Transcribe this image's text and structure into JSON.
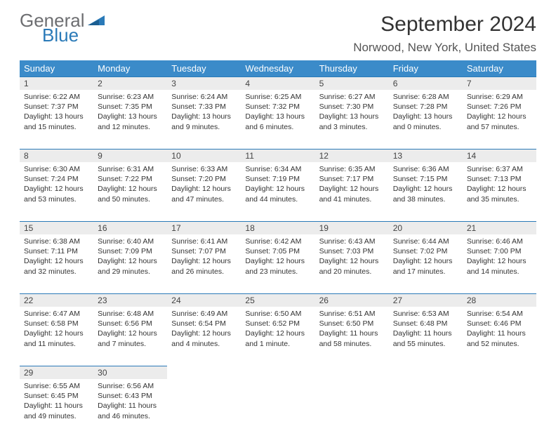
{
  "brand": {
    "line1": "General",
    "line2": "Blue"
  },
  "title": "September 2024",
  "location": "Norwood, New York, United States",
  "colors": {
    "header_bg": "#3b8bc9",
    "header_text": "#ffffff",
    "daynum_bg": "#ececec",
    "rule": "#2a7ab8",
    "body_text": "#333333",
    "logo_gray": "#6d6e71",
    "logo_blue": "#2a7ab8",
    "page_bg": "#ffffff"
  },
  "typography": {
    "title_fontsize": 30,
    "location_fontsize": 17,
    "dayheader_fontsize": 13,
    "daynum_fontsize": 12,
    "body_fontsize": 10.5,
    "logo_fontsize": 26
  },
  "day_headers": [
    "Sunday",
    "Monday",
    "Tuesday",
    "Wednesday",
    "Thursday",
    "Friday",
    "Saturday"
  ],
  "weeks": [
    [
      {
        "n": "1",
        "sunrise": "Sunrise: 6:22 AM",
        "sunset": "Sunset: 7:37 PM",
        "day1": "Daylight: 13 hours",
        "day2": "and 15 minutes."
      },
      {
        "n": "2",
        "sunrise": "Sunrise: 6:23 AM",
        "sunset": "Sunset: 7:35 PM",
        "day1": "Daylight: 13 hours",
        "day2": "and 12 minutes."
      },
      {
        "n": "3",
        "sunrise": "Sunrise: 6:24 AM",
        "sunset": "Sunset: 7:33 PM",
        "day1": "Daylight: 13 hours",
        "day2": "and 9 minutes."
      },
      {
        "n": "4",
        "sunrise": "Sunrise: 6:25 AM",
        "sunset": "Sunset: 7:32 PM",
        "day1": "Daylight: 13 hours",
        "day2": "and 6 minutes."
      },
      {
        "n": "5",
        "sunrise": "Sunrise: 6:27 AM",
        "sunset": "Sunset: 7:30 PM",
        "day1": "Daylight: 13 hours",
        "day2": "and 3 minutes."
      },
      {
        "n": "6",
        "sunrise": "Sunrise: 6:28 AM",
        "sunset": "Sunset: 7:28 PM",
        "day1": "Daylight: 13 hours",
        "day2": "and 0 minutes."
      },
      {
        "n": "7",
        "sunrise": "Sunrise: 6:29 AM",
        "sunset": "Sunset: 7:26 PM",
        "day1": "Daylight: 12 hours",
        "day2": "and 57 minutes."
      }
    ],
    [
      {
        "n": "8",
        "sunrise": "Sunrise: 6:30 AM",
        "sunset": "Sunset: 7:24 PM",
        "day1": "Daylight: 12 hours",
        "day2": "and 53 minutes."
      },
      {
        "n": "9",
        "sunrise": "Sunrise: 6:31 AM",
        "sunset": "Sunset: 7:22 PM",
        "day1": "Daylight: 12 hours",
        "day2": "and 50 minutes."
      },
      {
        "n": "10",
        "sunrise": "Sunrise: 6:33 AM",
        "sunset": "Sunset: 7:20 PM",
        "day1": "Daylight: 12 hours",
        "day2": "and 47 minutes."
      },
      {
        "n": "11",
        "sunrise": "Sunrise: 6:34 AM",
        "sunset": "Sunset: 7:19 PM",
        "day1": "Daylight: 12 hours",
        "day2": "and 44 minutes."
      },
      {
        "n": "12",
        "sunrise": "Sunrise: 6:35 AM",
        "sunset": "Sunset: 7:17 PM",
        "day1": "Daylight: 12 hours",
        "day2": "and 41 minutes."
      },
      {
        "n": "13",
        "sunrise": "Sunrise: 6:36 AM",
        "sunset": "Sunset: 7:15 PM",
        "day1": "Daylight: 12 hours",
        "day2": "and 38 minutes."
      },
      {
        "n": "14",
        "sunrise": "Sunrise: 6:37 AM",
        "sunset": "Sunset: 7:13 PM",
        "day1": "Daylight: 12 hours",
        "day2": "and 35 minutes."
      }
    ],
    [
      {
        "n": "15",
        "sunrise": "Sunrise: 6:38 AM",
        "sunset": "Sunset: 7:11 PM",
        "day1": "Daylight: 12 hours",
        "day2": "and 32 minutes."
      },
      {
        "n": "16",
        "sunrise": "Sunrise: 6:40 AM",
        "sunset": "Sunset: 7:09 PM",
        "day1": "Daylight: 12 hours",
        "day2": "and 29 minutes."
      },
      {
        "n": "17",
        "sunrise": "Sunrise: 6:41 AM",
        "sunset": "Sunset: 7:07 PM",
        "day1": "Daylight: 12 hours",
        "day2": "and 26 minutes."
      },
      {
        "n": "18",
        "sunrise": "Sunrise: 6:42 AM",
        "sunset": "Sunset: 7:05 PM",
        "day1": "Daylight: 12 hours",
        "day2": "and 23 minutes."
      },
      {
        "n": "19",
        "sunrise": "Sunrise: 6:43 AM",
        "sunset": "Sunset: 7:03 PM",
        "day1": "Daylight: 12 hours",
        "day2": "and 20 minutes."
      },
      {
        "n": "20",
        "sunrise": "Sunrise: 6:44 AM",
        "sunset": "Sunset: 7:02 PM",
        "day1": "Daylight: 12 hours",
        "day2": "and 17 minutes."
      },
      {
        "n": "21",
        "sunrise": "Sunrise: 6:46 AM",
        "sunset": "Sunset: 7:00 PM",
        "day1": "Daylight: 12 hours",
        "day2": "and 14 minutes."
      }
    ],
    [
      {
        "n": "22",
        "sunrise": "Sunrise: 6:47 AM",
        "sunset": "Sunset: 6:58 PM",
        "day1": "Daylight: 12 hours",
        "day2": "and 11 minutes."
      },
      {
        "n": "23",
        "sunrise": "Sunrise: 6:48 AM",
        "sunset": "Sunset: 6:56 PM",
        "day1": "Daylight: 12 hours",
        "day2": "and 7 minutes."
      },
      {
        "n": "24",
        "sunrise": "Sunrise: 6:49 AM",
        "sunset": "Sunset: 6:54 PM",
        "day1": "Daylight: 12 hours",
        "day2": "and 4 minutes."
      },
      {
        "n": "25",
        "sunrise": "Sunrise: 6:50 AM",
        "sunset": "Sunset: 6:52 PM",
        "day1": "Daylight: 12 hours",
        "day2": "and 1 minute."
      },
      {
        "n": "26",
        "sunrise": "Sunrise: 6:51 AM",
        "sunset": "Sunset: 6:50 PM",
        "day1": "Daylight: 11 hours",
        "day2": "and 58 minutes."
      },
      {
        "n": "27",
        "sunrise": "Sunrise: 6:53 AM",
        "sunset": "Sunset: 6:48 PM",
        "day1": "Daylight: 11 hours",
        "day2": "and 55 minutes."
      },
      {
        "n": "28",
        "sunrise": "Sunrise: 6:54 AM",
        "sunset": "Sunset: 6:46 PM",
        "day1": "Daylight: 11 hours",
        "day2": "and 52 minutes."
      }
    ],
    [
      {
        "n": "29",
        "sunrise": "Sunrise: 6:55 AM",
        "sunset": "Sunset: 6:45 PM",
        "day1": "Daylight: 11 hours",
        "day2": "and 49 minutes."
      },
      {
        "n": "30",
        "sunrise": "Sunrise: 6:56 AM",
        "sunset": "Sunset: 6:43 PM",
        "day1": "Daylight: 11 hours",
        "day2": "and 46 minutes."
      },
      null,
      null,
      null,
      null,
      null
    ]
  ]
}
